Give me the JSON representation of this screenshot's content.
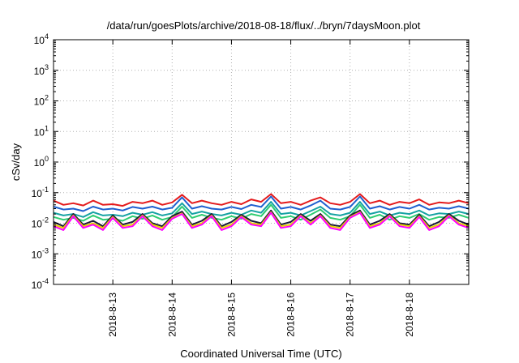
{
  "chart_data": {
    "type": "line",
    "title": "/data/run/goesPlots/archive/2018-08-18/flux/../bryn/7daysMoon.plot",
    "xlabel": "Coordinated Universal Time (UTC)",
    "ylabel": "cSv/day",
    "y_scale": "log",
    "ylim": [
      0.0001,
      10000
    ],
    "y_ticks": [
      {
        "base": "10",
        "exp": "4"
      },
      {
        "base": "10",
        "exp": "3"
      },
      {
        "base": "10",
        "exp": "2"
      },
      {
        "base": "10",
        "exp": "1"
      },
      {
        "base": "10",
        "exp": "0"
      },
      {
        "base": "10",
        "exp": "-1"
      },
      {
        "base": "10",
        "exp": "-2"
      },
      {
        "base": "10",
        "exp": "-3"
      },
      {
        "base": "10",
        "exp": "-4"
      }
    ],
    "x_ticks": [
      "2018-8-13",
      "2018-8-14",
      "2018-8-15",
      "2018-8-16",
      "2018-8-17",
      "2018-8-18"
    ],
    "x_tick_dates": [
      "2018-08-13",
      "2018-08-14",
      "2018-08-15",
      "2018-08-16",
      "2018-08-17",
      "2018-08-18"
    ],
    "xlim": [
      "2018-08-12 00:00",
      "2018-08-19 00:00"
    ],
    "x_hours": [
      0,
      4,
      8,
      12,
      16,
      20,
      24,
      28,
      32,
      36,
      40,
      44,
      48,
      52,
      56,
      60,
      64,
      68,
      72,
      76,
      80,
      84,
      88,
      92,
      96,
      100,
      104,
      108,
      112,
      116,
      120,
      124,
      128,
      132,
      136,
      140,
      144,
      148,
      152,
      156,
      160,
      164,
      168
    ],
    "grid": true,
    "legend": "none",
    "series": [
      {
        "color": "#e41a1c",
        "values": [
          0.055,
          0.04,
          0.045,
          0.038,
          0.055,
          0.04,
          0.042,
          0.037,
          0.05,
          0.045,
          0.055,
          0.04,
          0.048,
          0.085,
          0.045,
          0.055,
          0.045,
          0.04,
          0.05,
          0.042,
          0.06,
          0.05,
          0.09,
          0.045,
          0.05,
          0.04,
          0.055,
          0.07,
          0.045,
          0.04,
          0.05,
          0.09,
          0.045,
          0.055,
          0.04,
          0.05,
          0.045,
          0.06,
          0.04,
          0.048,
          0.045,
          0.055,
          0.045
        ]
      },
      {
        "color": "#1f5fcf",
        "values": [
          0.035,
          0.028,
          0.03,
          0.025,
          0.035,
          0.028,
          0.03,
          0.026,
          0.034,
          0.03,
          0.035,
          0.028,
          0.032,
          0.07,
          0.03,
          0.036,
          0.03,
          0.028,
          0.034,
          0.029,
          0.04,
          0.034,
          0.075,
          0.03,
          0.034,
          0.028,
          0.038,
          0.055,
          0.03,
          0.028,
          0.034,
          0.075,
          0.03,
          0.036,
          0.028,
          0.034,
          0.03,
          0.04,
          0.028,
          0.032,
          0.03,
          0.036,
          0.03
        ]
      },
      {
        "color": "#17a3a3",
        "values": [
          0.022,
          0.018,
          0.02,
          0.016,
          0.023,
          0.018,
          0.019,
          0.017,
          0.022,
          0.019,
          0.023,
          0.018,
          0.021,
          0.045,
          0.02,
          0.024,
          0.02,
          0.018,
          0.022,
          0.019,
          0.026,
          0.022,
          0.05,
          0.02,
          0.022,
          0.018,
          0.025,
          0.035,
          0.02,
          0.018,
          0.022,
          0.05,
          0.02,
          0.024,
          0.018,
          0.022,
          0.02,
          0.026,
          0.018,
          0.021,
          0.02,
          0.024,
          0.02
        ]
      },
      {
        "color": "#2ecc71",
        "values": [
          0.016,
          0.013,
          0.015,
          0.012,
          0.018,
          0.013,
          0.014,
          0.012,
          0.017,
          0.014,
          0.018,
          0.013,
          0.016,
          0.035,
          0.015,
          0.019,
          0.015,
          0.013,
          0.017,
          0.014,
          0.02,
          0.017,
          0.04,
          0.015,
          0.017,
          0.013,
          0.019,
          0.028,
          0.015,
          0.013,
          0.017,
          0.04,
          0.015,
          0.019,
          0.013,
          0.017,
          0.015,
          0.02,
          0.013,
          0.016,
          0.015,
          0.019,
          0.015
        ]
      },
      {
        "color": "#1a1a3a",
        "values": [
          0.011,
          0.008,
          0.02,
          0.009,
          0.012,
          0.008,
          0.018,
          0.009,
          0.011,
          0.02,
          0.01,
          0.008,
          0.017,
          0.024,
          0.009,
          0.012,
          0.02,
          0.008,
          0.011,
          0.019,
          0.012,
          0.01,
          0.026,
          0.009,
          0.011,
          0.02,
          0.012,
          0.02,
          0.009,
          0.008,
          0.018,
          0.026,
          0.009,
          0.012,
          0.02,
          0.01,
          0.009,
          0.019,
          0.008,
          0.011,
          0.02,
          0.012,
          0.009
        ]
      },
      {
        "color": "#e8d000",
        "values": [
          0.009,
          0.007,
          0.018,
          0.008,
          0.01,
          0.007,
          0.016,
          0.008,
          0.009,
          0.018,
          0.009,
          0.007,
          0.015,
          0.021,
          0.008,
          0.01,
          0.018,
          0.007,
          0.009,
          0.017,
          0.01,
          0.009,
          0.023,
          0.008,
          0.009,
          0.018,
          0.01,
          0.018,
          0.008,
          0.007,
          0.016,
          0.023,
          0.008,
          0.01,
          0.018,
          0.009,
          0.008,
          0.017,
          0.007,
          0.009,
          0.018,
          0.01,
          0.008
        ]
      },
      {
        "color": "#ff00ff",
        "values": [
          0.008,
          0.006,
          0.017,
          0.007,
          0.009,
          0.006,
          0.015,
          0.007,
          0.008,
          0.017,
          0.008,
          0.006,
          0.014,
          0.02,
          0.007,
          0.009,
          0.017,
          0.006,
          0.008,
          0.016,
          0.009,
          0.008,
          0.022,
          0.007,
          0.008,
          0.017,
          0.009,
          0.017,
          0.007,
          0.006,
          0.015,
          0.022,
          0.007,
          0.009,
          0.017,
          0.008,
          0.007,
          0.016,
          0.006,
          0.008,
          0.017,
          0.009,
          0.007
        ]
      }
    ]
  }
}
